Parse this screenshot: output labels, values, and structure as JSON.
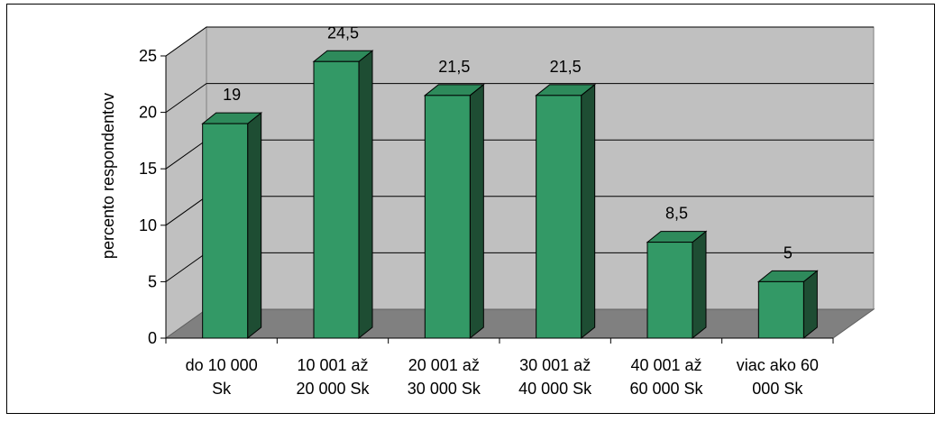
{
  "chart_data": {
    "type": "bar",
    "ylabel": "percento respondentov",
    "xlabel": "",
    "title": "",
    "ylim": [
      0,
      25
    ],
    "yticks": [
      0,
      5,
      10,
      15,
      20,
      25
    ],
    "categories": [
      [
        "do 10 000",
        "Sk"
      ],
      [
        "10 001 až",
        "20 000 Sk"
      ],
      [
        "20 001 až",
        "30 000 Sk"
      ],
      [
        "30 001 až",
        "40 000 Sk"
      ],
      [
        "40 001 až",
        "60 000 Sk"
      ],
      [
        "viac ako 60",
        "000 Sk"
      ]
    ],
    "values": [
      19,
      24.5,
      21.5,
      21.5,
      8.5,
      5
    ],
    "data_labels": [
      "19",
      "24,5",
      "21,5",
      "21,5",
      "8,5",
      "5"
    ],
    "style": "3d-bar",
    "grid": true,
    "legend": "none",
    "colors": {
      "bar_front": "#339966",
      "bar_side": "#1e4d33",
      "bar_top": "#2e8a5b",
      "wall": "#c0c0c0",
      "floor": "#808080",
      "gridline": "#000000"
    }
  }
}
